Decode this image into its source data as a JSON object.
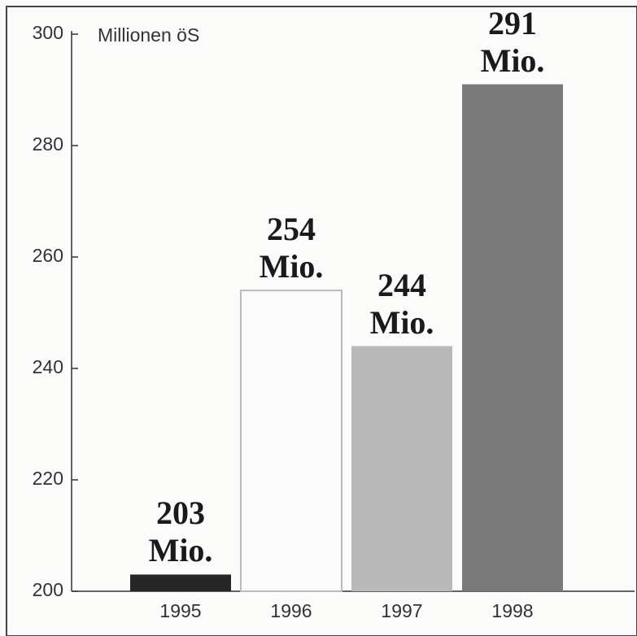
{
  "chart_data": {
    "type": "bar",
    "y_label": "Millionen öS",
    "categories": [
      "1995",
      "1996",
      "1997",
      "1998"
    ],
    "values": [
      203,
      254,
      244,
      291
    ],
    "value_labels": [
      "203 Mio.",
      "254 Mio.",
      "244 Mio.",
      "291 Mio."
    ],
    "colors": [
      "#262626",
      "#fbfbfb",
      "#b9b9b9",
      "#7a7a7a"
    ],
    "ylim": [
      200,
      300
    ],
    "yticks": [
      200,
      220,
      240,
      260,
      280,
      300
    ]
  }
}
